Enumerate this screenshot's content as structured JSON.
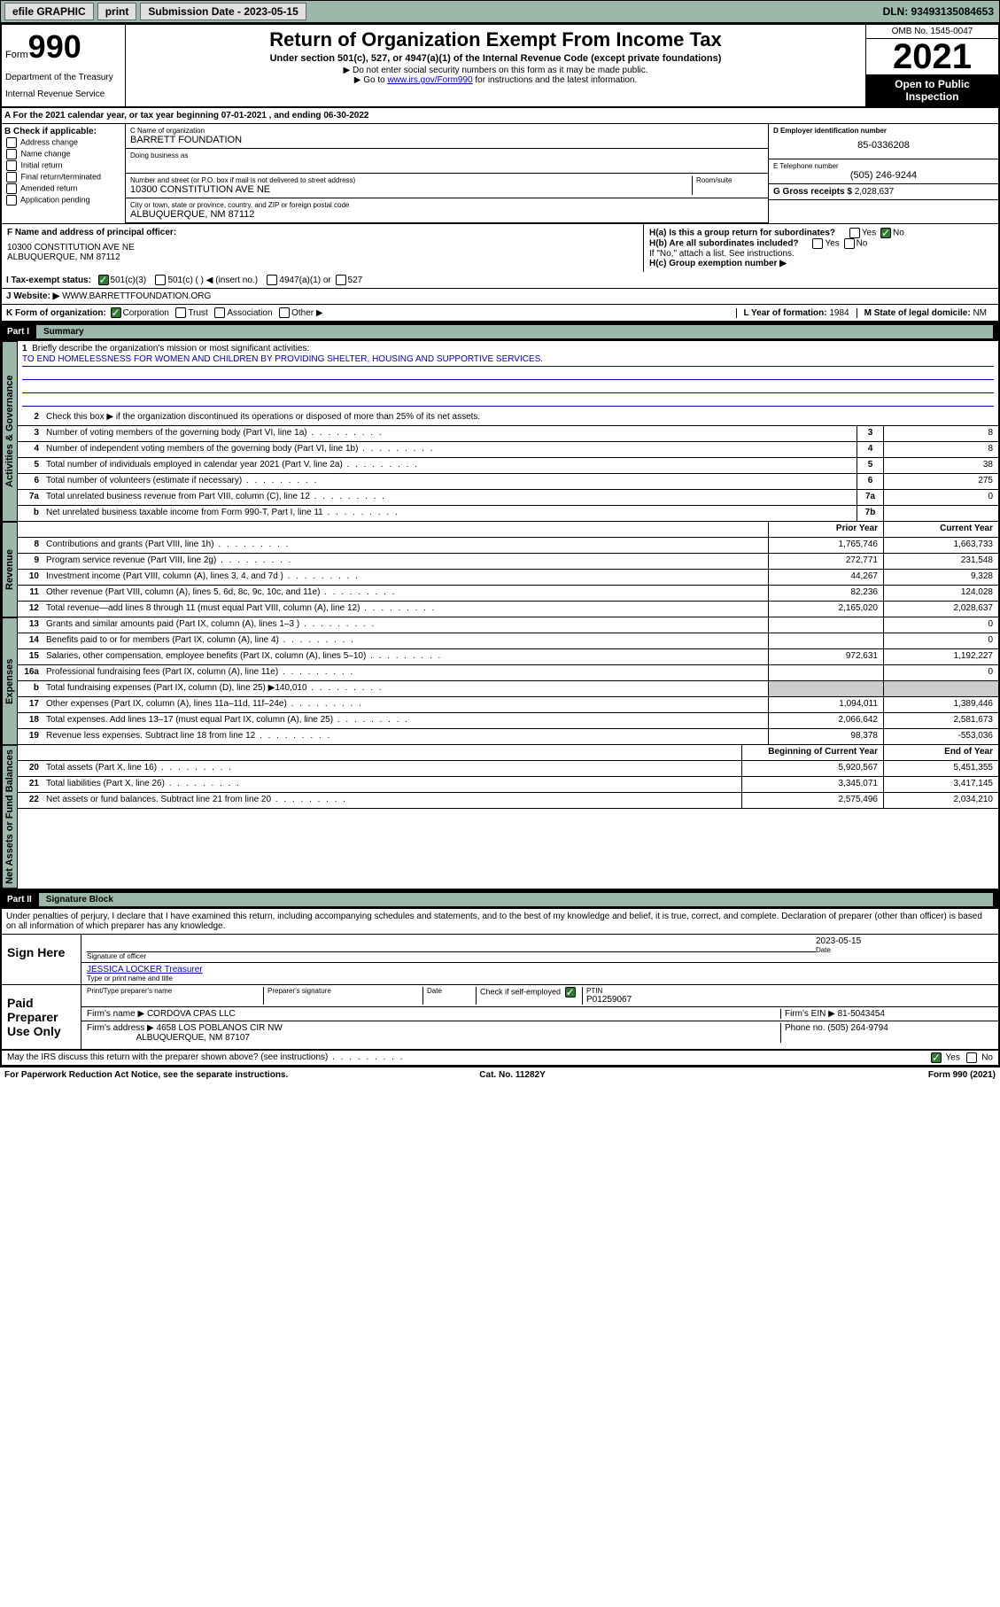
{
  "topbar": {
    "efile": "efile GRAPHIC",
    "print": "print",
    "subdate_lbl": "Submission Date - 2023-05-15",
    "dln": "DLN: 93493135084653"
  },
  "header": {
    "form_prefix": "Form",
    "form_num": "990",
    "dept": "Department of the Treasury",
    "irs": "Internal Revenue Service",
    "title": "Return of Organization Exempt From Income Tax",
    "sub1": "Under section 501(c), 527, or 4947(a)(1) of the Internal Revenue Code (except private foundations)",
    "sub2": "▶ Do not enter social security numbers on this form as it may be made public.",
    "sub3_pre": "▶ Go to ",
    "sub3_link": "www.irs.gov/Form990",
    "sub3_post": " for instructions and the latest information.",
    "omb": "OMB No. 1545-0047",
    "year": "2021",
    "open": "Open to Public Inspection"
  },
  "block_a": {
    "taxyear": "A For the 2021 calendar year, or tax year beginning 07-01-2021   , and ending 06-30-2022",
    "b_lbl": "B Check if applicable:",
    "checks": [
      "Address change",
      "Name change",
      "Initial return",
      "Final return/terminated",
      "Amended return",
      "Application pending"
    ],
    "c_lbl": "C Name of organization",
    "c_val": "BARRETT FOUNDATION",
    "dba_lbl": "Doing business as",
    "addr_lbl": "Number and street (or P.O. box if mail is not delivered to street address)",
    "room_lbl": "Room/suite",
    "addr_val": "10300 CONSTITUTION AVE NE",
    "city_lbl": "City or town, state or province, country, and ZIP or foreign postal code",
    "city_val": "ALBUQUERQUE, NM  87112",
    "d_lbl": "D Employer identification number",
    "d_val": "85-0336208",
    "e_lbl": "E Telephone number",
    "e_val": "(505) 246-9244",
    "g_lbl": "G Gross receipts $",
    "g_val": "2,028,637",
    "f_lbl": "F Name and address of principal officer:",
    "f_val1": "10300 CONSTITUTION AVE NE",
    "f_val2": "ALBUQUERQUE, NM  87112",
    "ha_lbl": "H(a)  Is this a group return for subordinates?",
    "hb_lbl": "H(b)  Are all subordinates included?",
    "hb_note": "If \"No,\" attach a list. See instructions.",
    "hc_lbl": "H(c)  Group exemption number ▶",
    "yes": "Yes",
    "no": "No",
    "i_lbl": "I   Tax-exempt status:",
    "i_501c3": "501(c)(3)",
    "i_501c": "501(c) (  ) ◀ (insert no.)",
    "i_4947": "4947(a)(1) or",
    "i_527": "527",
    "j_lbl": "J   Website: ▶",
    "j_val": "WWW.BARRETTFOUNDATION.ORG",
    "k_lbl": "K Form of organization:",
    "k_corp": "Corporation",
    "k_trust": "Trust",
    "k_assoc": "Association",
    "k_other": "Other ▶",
    "l_lbl": "L Year of formation:",
    "l_val": "1984",
    "m_lbl": "M State of legal domicile:",
    "m_val": "NM"
  },
  "part1": {
    "hdr_num": "Part I",
    "hdr_txt": "Summary",
    "labels": {
      "activities": "Activities & Governance",
      "revenue": "Revenue",
      "expenses": "Expenses",
      "netassets": "Net Assets or Fund Balances"
    },
    "l1_lbl": "Briefly describe the organization's mission or most significant activities:",
    "l1_val": "TO END HOMELESSNESS FOR WOMEN AND CHILDREN BY PROVIDING SHELTER, HOUSING AND SUPPORTIVE SERVICES.",
    "l2_lbl": "Check this box ▶         if the organization discontinued its operations or disposed of more than 25% of its net assets.",
    "l3_lbl": "Number of voting members of the governing body (Part VI, line 1a)",
    "l4_lbl": "Number of independent voting members of the governing body (Part VI, line 1b)",
    "l5_lbl": "Total number of individuals employed in calendar year 2021 (Part V, line 2a)",
    "l6_lbl": "Total number of volunteers (estimate if necessary)",
    "l7a_lbl": "Total unrelated business revenue from Part VIII, column (C), line 12",
    "l7b_lbl": "Net unrelated business taxable income from Form 990-T, Part I, line 11",
    "vals": {
      "3": "8",
      "4": "8",
      "5": "38",
      "6": "275",
      "7a": "0",
      "7b": ""
    },
    "prior_hdr": "Prior Year",
    "curr_hdr": "Current Year",
    "boy_hdr": "Beginning of Current Year",
    "eoy_hdr": "End of Year",
    "rows": [
      {
        "n": "8",
        "t": "Contributions and grants (Part VIII, line 1h)",
        "p": "1,765,746",
        "c": "1,663,733"
      },
      {
        "n": "9",
        "t": "Program service revenue (Part VIII, line 2g)",
        "p": "272,771",
        "c": "231,548"
      },
      {
        "n": "10",
        "t": "Investment income (Part VIII, column (A), lines 3, 4, and 7d )",
        "p": "44,267",
        "c": "9,328"
      },
      {
        "n": "11",
        "t": "Other revenue (Part VIII, column (A), lines 5, 6d, 8c, 9c, 10c, and 11e)",
        "p": "82,236",
        "c": "124,028"
      },
      {
        "n": "12",
        "t": "Total revenue—add lines 8 through 11 (must equal Part VIII, column (A), line 12)",
        "p": "2,165,020",
        "c": "2,028,637"
      }
    ],
    "exp_rows": [
      {
        "n": "13",
        "t": "Grants and similar amounts paid (Part IX, column (A), lines 1–3 )",
        "p": "",
        "c": "0"
      },
      {
        "n": "14",
        "t": "Benefits paid to or for members (Part IX, column (A), line 4)",
        "p": "",
        "c": "0"
      },
      {
        "n": "15",
        "t": "Salaries, other compensation, employee benefits (Part IX, column (A), lines 5–10)",
        "p": "972,631",
        "c": "1,192,227"
      },
      {
        "n": "16a",
        "t": "Professional fundraising fees (Part IX, column (A), line 11e)",
        "p": "",
        "c": "0"
      },
      {
        "n": "b",
        "t": "Total fundraising expenses (Part IX, column (D), line 25) ▶140,010",
        "p": "shade",
        "c": "shade"
      },
      {
        "n": "17",
        "t": "Other expenses (Part IX, column (A), lines 11a–11d, 11f–24e)",
        "p": "1,094,011",
        "c": "1,389,446"
      },
      {
        "n": "18",
        "t": "Total expenses. Add lines 13–17 (must equal Part IX, column (A), line 25)",
        "p": "2,066,642",
        "c": "2,581,673"
      },
      {
        "n": "19",
        "t": "Revenue less expenses. Subtract line 18 from line 12",
        "p": "98,378",
        "c": "-553,036"
      }
    ],
    "na_rows": [
      {
        "n": "20",
        "t": "Total assets (Part X, line 16)",
        "p": "5,920,567",
        "c": "5,451,355"
      },
      {
        "n": "21",
        "t": "Total liabilities (Part X, line 26)",
        "p": "3,345,071",
        "c": "3,417,145"
      },
      {
        "n": "22",
        "t": "Net assets or fund balances. Subtract line 21 from line 20",
        "p": "2,575,496",
        "c": "2,034,210"
      }
    ]
  },
  "part2": {
    "hdr_num": "Part II",
    "hdr_txt": "Signature Block",
    "penalty": "Under penalties of perjury, I declare that I have examined this return, including accompanying schedules and statements, and to the best of my knowledge and belief, it is true, correct, and complete. Declaration of preparer (other than officer) is based on all information of which preparer has any knowledge.",
    "sign_here": "Sign Here",
    "sig_officer": "Signature of officer",
    "sig_date": "2023-05-15",
    "date_lbl": "Date",
    "officer_name": "JESSICA LOCKER Treasurer",
    "officer_lbl": "Type or print name and title",
    "paid_prep": "Paid Preparer Use Only",
    "prep_name_lbl": "Print/Type preparer's name",
    "prep_sig_lbl": "Preparer's signature",
    "check_self": "Check          if self-employed",
    "ptin_lbl": "PTIN",
    "ptin_val": "P01259067",
    "firm_name_lbl": "Firm's name   ▶",
    "firm_name": "CORDOVA CPAS LLC",
    "firm_ein_lbl": "Firm's EIN ▶",
    "firm_ein": "81-5043454",
    "firm_addr_lbl": "Firm's address ▶",
    "firm_addr1": "4658 LOS POBLANOS CIR NW",
    "firm_addr2": "ALBUQUERQUE, NM  87107",
    "phone_lbl": "Phone no.",
    "phone_val": "(505) 264-9794",
    "may_irs": "May the IRS discuss this return with the preparer shown above? (see instructions)"
  },
  "footer": {
    "left": "For Paperwork Reduction Act Notice, see the separate instructions.",
    "mid": "Cat. No. 11282Y",
    "right": "Form 990 (2021)"
  }
}
